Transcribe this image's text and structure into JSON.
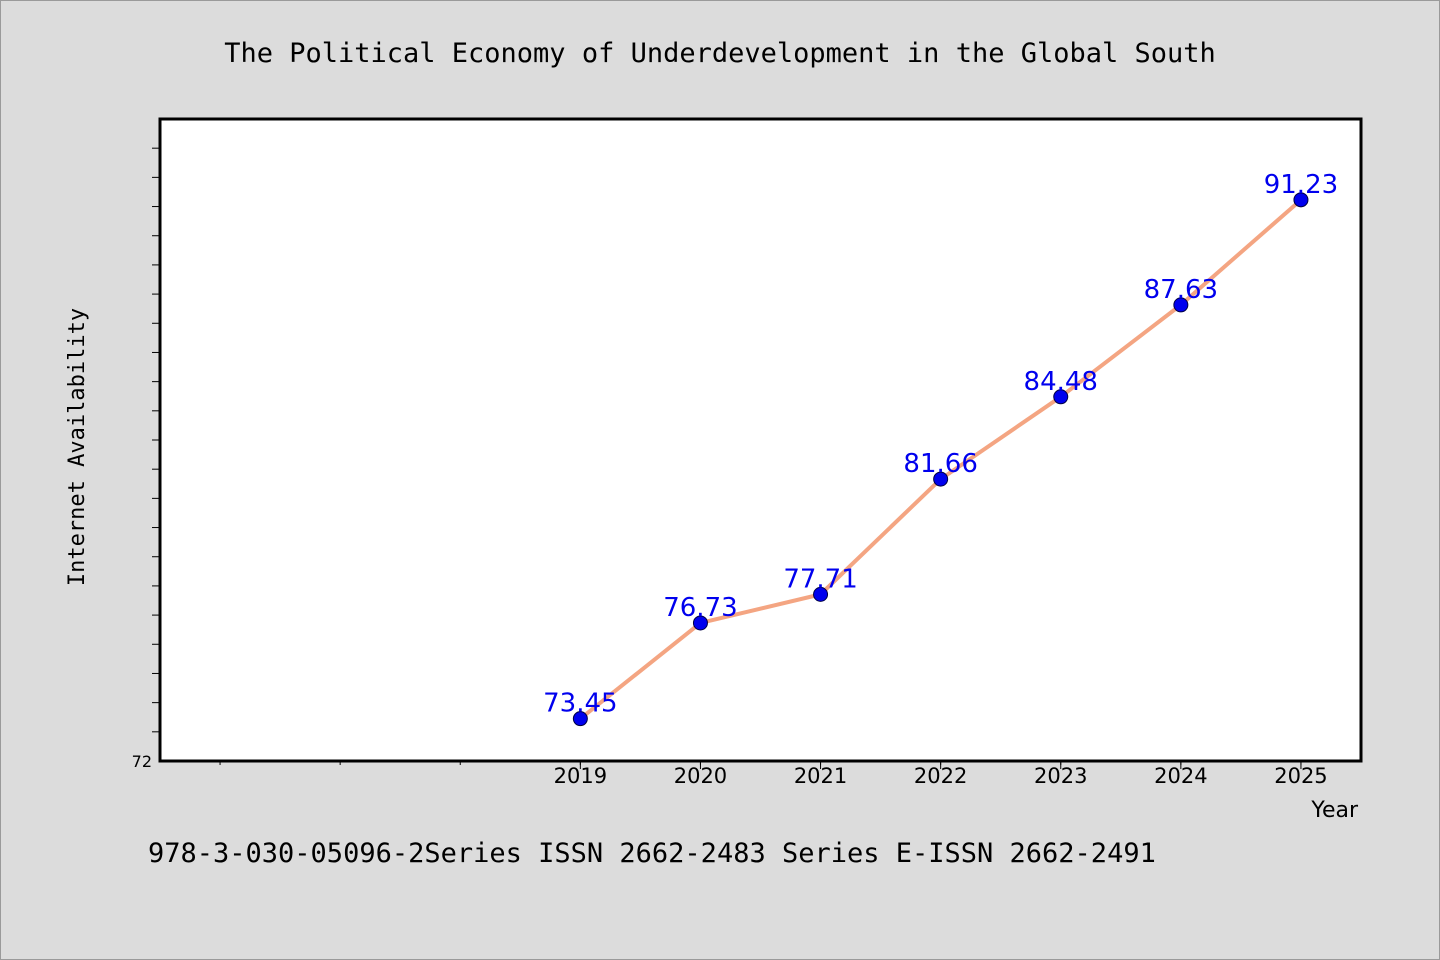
{
  "chart_data": {
    "type": "line",
    "title": "The Political Economy of Underdevelopment in the Global South",
    "xlabel": "Year",
    "ylabel": "Internet Availability",
    "x": [
      "2019",
      "2020",
      "2021",
      "2022",
      "2023",
      "2024",
      "2025"
    ],
    "series": [
      {
        "values": [
          73.45,
          76.73,
          77.71,
          81.66,
          84.48,
          87.63,
          91.23
        ],
        "labels": [
          "73.45",
          "76.73",
          "77.71",
          "81.66",
          "84.48",
          "87.63",
          "91.23"
        ]
      }
    ],
    "y_tick_labels": [
      "72"
    ],
    "xlim": [
      2015.5,
      2025.5
    ],
    "ylim": [
      72,
      94
    ],
    "grid": false,
    "colors": {
      "line": "#f4a582",
      "marker": "#0000ee",
      "label": "#0000ee",
      "background": "#dcdcdc",
      "plot_background": "#ffffff"
    }
  },
  "footer": {
    "isbn_text": "978-3-030-05096-2Series ISSN 2662-2483 Series E-ISSN 2662-2491"
  }
}
